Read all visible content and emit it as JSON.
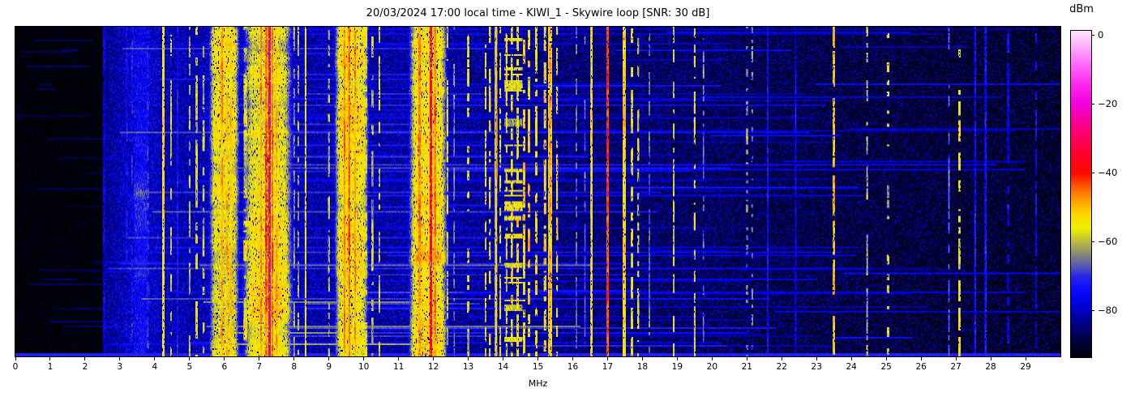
{
  "header": {
    "title": "20/03/2024 17:00 local time - KIWI_1 - Skywire loop [SNR: 30 dB]"
  },
  "chart_data": {
    "type": "heatmap",
    "title": "20/03/2024 17:00 local time - KIWI_1 - Skywire loop [SNR: 30 dB]",
    "xlabel": "MHz",
    "x_range_mhz": [
      0,
      30
    ],
    "x_ticks": [
      "0",
      "1",
      "2",
      "3",
      "4",
      "5",
      "6",
      "7",
      "8",
      "9",
      "10",
      "11",
      "12",
      "13",
      "14",
      "15",
      "16",
      "17",
      "18",
      "19",
      "20",
      "21",
      "22",
      "23",
      "24",
      "25",
      "26",
      "27",
      "28",
      "29"
    ],
    "y_axis": "time (no tick labels shown)",
    "grid": false,
    "colorbar": {
      "label": "dBm",
      "range_dbm": [
        1.4,
        -93.5
      ],
      "ticks": [
        {
          "label": "0",
          "value": 0
        },
        {
          "label": "−20",
          "value": -20
        },
        {
          "label": "−40",
          "value": -40
        },
        {
          "label": "−60",
          "value": -60
        },
        {
          "label": "−80",
          "value": -80
        }
      ],
      "gradient_stops": [
        [
          -94,
          "#000000"
        ],
        [
          -88,
          "#000048"
        ],
        [
          -83,
          "#000096"
        ],
        [
          -78,
          "#0000e1"
        ],
        [
          -74,
          "#0a0aff"
        ],
        [
          -70,
          "#2828e6"
        ],
        [
          -67,
          "#5a5ab4"
        ],
        [
          -64,
          "#828282"
        ],
        [
          -62,
          "#a0a05a"
        ],
        [
          -59,
          "#c8c832"
        ],
        [
          -56,
          "#f0f000"
        ],
        [
          -52,
          "#ffd800"
        ],
        [
          -48,
          "#ffa000"
        ],
        [
          -44,
          "#ff5a00"
        ],
        [
          -40,
          "#fc0a00"
        ],
        [
          -35,
          "#ff0028"
        ],
        [
          -30,
          "#ff005a"
        ],
        [
          -25,
          "#fa0096"
        ],
        [
          -20,
          "#f400dc"
        ],
        [
          -14,
          "#ff28f0"
        ],
        [
          -8,
          "#ff6efa"
        ],
        [
          -2,
          "#ffbefc"
        ],
        [
          2,
          "#ffe8ff"
        ]
      ]
    },
    "noise_floor_dbm": [
      [
        0,
        -92.5
      ],
      [
        2.5,
        -92.5
      ],
      [
        2.56,
        -84
      ],
      [
        3.1,
        -81
      ],
      [
        3.5,
        -78.5
      ],
      [
        3.9,
        -80
      ],
      [
        4.5,
        -81.5
      ],
      [
        6,
        -81
      ],
      [
        8,
        -82
      ],
      [
        11,
        -82.5
      ],
      [
        13,
        -83.5
      ],
      [
        16,
        -85.5
      ],
      [
        18,
        -86.5
      ],
      [
        21,
        -88
      ],
      [
        24,
        -89
      ],
      [
        27,
        -90
      ],
      [
        30,
        -90.5
      ]
    ],
    "signal_bands": [
      {
        "mhz": 2.55,
        "width_mhz": 0.05,
        "peak_dbm": -77,
        "mode": "solid"
      },
      {
        "mhz": 3.2,
        "width_mhz": 0.04,
        "peak_dbm": -74,
        "mode": "dotted"
      },
      {
        "mhz": 3.35,
        "width_mhz": 0.04,
        "peak_dbm": -73,
        "mode": "dotted"
      },
      {
        "mhz": 3.6,
        "width_mhz": 0.3,
        "peak_dbm": -75,
        "mode": "band"
      },
      {
        "mhz": 3.8,
        "width_mhz": 0.05,
        "peak_dbm": -71,
        "mode": "dotted"
      },
      {
        "mhz": 4.25,
        "width_mhz": 0.05,
        "peak_dbm": -54,
        "mode": "solid"
      },
      {
        "mhz": 4.47,
        "width_mhz": 0.04,
        "peak_dbm": -59,
        "mode": "dotted"
      },
      {
        "mhz": 4.65,
        "width_mhz": 0.04,
        "peak_dbm": -72,
        "mode": "solid"
      },
      {
        "mhz": 5.0,
        "width_mhz": 0.04,
        "peak_dbm": -61,
        "mode": "dotted"
      },
      {
        "mhz": 5.2,
        "width_mhz": 0.05,
        "peak_dbm": -57,
        "mode": "dotted"
      },
      {
        "mhz": 5.4,
        "width_mhz": 0.05,
        "peak_dbm": -58,
        "mode": "dotted"
      },
      {
        "mhz": 6.0,
        "width_mhz": 0.5,
        "peak_dbm": -57,
        "mode": "band"
      },
      {
        "mhz": 5.93,
        "width_mhz": 0.05,
        "peak_dbm": -48,
        "mode": "solid"
      },
      {
        "mhz": 6.07,
        "width_mhz": 0.05,
        "peak_dbm": -50,
        "mode": "solid"
      },
      {
        "mhz": 6.18,
        "width_mhz": 0.04,
        "peak_dbm": -52,
        "mode": "solid"
      },
      {
        "mhz": 6.6,
        "width_mhz": 0.08,
        "peak_dbm": -56,
        "mode": "dotted"
      },
      {
        "mhz": 7.25,
        "width_mhz": 0.8,
        "peak_dbm": -56,
        "mode": "band"
      },
      {
        "mhz": 7.05,
        "width_mhz": 0.05,
        "peak_dbm": -47,
        "mode": "solid"
      },
      {
        "mhz": 7.2,
        "width_mhz": 0.05,
        "peak_dbm": -44,
        "mode": "solid"
      },
      {
        "mhz": 7.3,
        "width_mhz": 0.035,
        "peak_dbm": -27,
        "mode": "solid"
      },
      {
        "mhz": 7.38,
        "width_mhz": 0.05,
        "peak_dbm": -44,
        "mode": "solid"
      },
      {
        "mhz": 7.5,
        "width_mhz": 0.05,
        "peak_dbm": -50,
        "mode": "solid"
      },
      {
        "mhz": 8.0,
        "width_mhz": 0.04,
        "peak_dbm": -62,
        "mode": "dotted"
      },
      {
        "mhz": 8.12,
        "width_mhz": 0.04,
        "peak_dbm": -60,
        "mode": "dotted"
      },
      {
        "mhz": 8.33,
        "width_mhz": 0.04,
        "peak_dbm": -55,
        "mode": "solid"
      },
      {
        "mhz": 9.0,
        "width_mhz": 0.04,
        "peak_dbm": -61,
        "mode": "dotted"
      },
      {
        "mhz": 9.65,
        "width_mhz": 0.55,
        "peak_dbm": -55,
        "mode": "band"
      },
      {
        "mhz": 9.45,
        "width_mhz": 0.05,
        "peak_dbm": -46,
        "mode": "solid"
      },
      {
        "mhz": 9.58,
        "width_mhz": 0.04,
        "peak_dbm": -44,
        "mode": "solid"
      },
      {
        "mhz": 9.75,
        "width_mhz": 0.05,
        "peak_dbm": -48,
        "mode": "solid"
      },
      {
        "mhz": 10.05,
        "width_mhz": 0.1,
        "peak_dbm": -57,
        "mode": "dotted"
      },
      {
        "mhz": 10.25,
        "width_mhz": 0.04,
        "peak_dbm": -60,
        "mode": "dotted"
      },
      {
        "mhz": 10.45,
        "width_mhz": 0.04,
        "peak_dbm": -58,
        "mode": "dotted"
      },
      {
        "mhz": 11.85,
        "width_mhz": 0.62,
        "peak_dbm": -54,
        "mode": "band"
      },
      {
        "mhz": 11.6,
        "width_mhz": 0.05,
        "peak_dbm": -46,
        "mode": "solid"
      },
      {
        "mhz": 11.93,
        "width_mhz": 0.04,
        "peak_dbm": -33,
        "mode": "solid"
      },
      {
        "mhz": 12.05,
        "width_mhz": 0.05,
        "peak_dbm": -45,
        "mode": "solid"
      },
      {
        "mhz": 12.4,
        "width_mhz": 0.04,
        "peak_dbm": -58,
        "mode": "dotted"
      },
      {
        "mhz": 12.6,
        "width_mhz": 0.03,
        "peak_dbm": -65,
        "mode": "dotted"
      },
      {
        "mhz": 13.0,
        "width_mhz": 0.04,
        "peak_dbm": -57,
        "mode": "dotted"
      },
      {
        "mhz": 13.5,
        "width_mhz": 0.04,
        "peak_dbm": -56,
        "mode": "dotted"
      },
      {
        "mhz": 13.62,
        "width_mhz": 0.04,
        "peak_dbm": -55,
        "mode": "dotted"
      },
      {
        "mhz": 13.8,
        "width_mhz": 0.05,
        "peak_dbm": -52,
        "mode": "solid"
      },
      {
        "mhz": 13.92,
        "width_mhz": 0.04,
        "peak_dbm": -56,
        "mode": "dotted"
      },
      {
        "mhz": 14.3,
        "width_mhz": 0.5,
        "peak_dbm": -57,
        "mode": "speckle"
      },
      {
        "mhz": 14.1,
        "width_mhz": 0.04,
        "peak_dbm": -56,
        "mode": "dotted"
      },
      {
        "mhz": 14.25,
        "width_mhz": 0.04,
        "peak_dbm": -54,
        "mode": "dotted"
      },
      {
        "mhz": 14.42,
        "width_mhz": 0.04,
        "peak_dbm": -54,
        "mode": "dotted"
      },
      {
        "mhz": 14.6,
        "width_mhz": 0.05,
        "peak_dbm": -53,
        "mode": "dotted"
      },
      {
        "mhz": 14.75,
        "width_mhz": 0.05,
        "peak_dbm": -52,
        "mode": "dotted"
      },
      {
        "mhz": 14.95,
        "width_mhz": 0.05,
        "peak_dbm": -54,
        "mode": "dotted"
      },
      {
        "mhz": 15.2,
        "width_mhz": 0.05,
        "peak_dbm": -52,
        "mode": "dotted"
      },
      {
        "mhz": 15.35,
        "width_mhz": 0.08,
        "peak_dbm": -50,
        "mode": "solid"
      },
      {
        "mhz": 15.55,
        "width_mhz": 0.04,
        "peak_dbm": -55,
        "mode": "dotted"
      },
      {
        "mhz": 16.1,
        "width_mhz": 0.03,
        "peak_dbm": -65,
        "mode": "dotted"
      },
      {
        "mhz": 16.35,
        "width_mhz": 0.03,
        "peak_dbm": -66,
        "mode": "dotted"
      },
      {
        "mhz": 16.54,
        "width_mhz": 0.04,
        "peak_dbm": -54,
        "mode": "solid"
      },
      {
        "mhz": 17.0,
        "width_mhz": 0.045,
        "peak_dbm": -42,
        "mode": "solid"
      },
      {
        "mhz": 17.48,
        "width_mhz": 0.08,
        "peak_dbm": -52,
        "mode": "solid"
      },
      {
        "mhz": 17.7,
        "width_mhz": 0.04,
        "peak_dbm": -56,
        "mode": "dotted"
      },
      {
        "mhz": 17.88,
        "width_mhz": 0.04,
        "peak_dbm": -58,
        "mode": "dotted"
      },
      {
        "mhz": 18.2,
        "width_mhz": 0.03,
        "peak_dbm": -66,
        "mode": "dotted"
      },
      {
        "mhz": 18.9,
        "width_mhz": 0.04,
        "peak_dbm": -58,
        "mode": "dotted"
      },
      {
        "mhz": 19.5,
        "width_mhz": 0.04,
        "peak_dbm": -57,
        "mode": "dotted"
      },
      {
        "mhz": 19.75,
        "width_mhz": 0.03,
        "peak_dbm": -64,
        "mode": "dotted"
      },
      {
        "mhz": 21.0,
        "width_mhz": 0.06,
        "peak_dbm": -64,
        "mode": "speckle"
      },
      {
        "mhz": 21.15,
        "width_mhz": 0.04,
        "peak_dbm": -66,
        "mode": "speckle"
      },
      {
        "mhz": 21.6,
        "width_mhz": 0.03,
        "peak_dbm": -74,
        "mode": "solid"
      },
      {
        "mhz": 22.4,
        "width_mhz": 0.03,
        "peak_dbm": -75,
        "mode": "solid"
      },
      {
        "mhz": 23.5,
        "width_mhz": 0.04,
        "peak_dbm": -49,
        "mode": "dotted"
      },
      {
        "mhz": 24.45,
        "width_mhz": 0.03,
        "peak_dbm": -57,
        "mode": "dotted"
      },
      {
        "mhz": 25.05,
        "width_mhz": 0.06,
        "peak_dbm": -58,
        "mode": "speckle"
      },
      {
        "mhz": 26.8,
        "width_mhz": 0.03,
        "peak_dbm": -64,
        "mode": "dotted"
      },
      {
        "mhz": 27.1,
        "width_mhz": 0.04,
        "peak_dbm": -55,
        "mode": "dotted"
      },
      {
        "mhz": 27.55,
        "width_mhz": 0.04,
        "peak_dbm": -72,
        "mode": "solid"
      },
      {
        "mhz": 27.85,
        "width_mhz": 0.04,
        "peak_dbm": -73,
        "mode": "solid"
      },
      {
        "mhz": 28.5,
        "width_mhz": 0.04,
        "peak_dbm": -76,
        "mode": "dotted"
      },
      {
        "mhz": 29.3,
        "width_mhz": 0.04,
        "peak_dbm": -75,
        "mode": "dotted"
      }
    ],
    "texture": {
      "seed": 20240320,
      "random_streak_count": 120,
      "bright_rows": [
        {
          "row": 147,
          "f0": 5.3,
          "f1": 16.5,
          "dbm": -66
        },
        {
          "row": 170,
          "f0": 5.4,
          "f1": 12.3,
          "dbm": -64
        },
        {
          "row": 185,
          "f0": 5.5,
          "f1": 16.2,
          "dbm": -65
        },
        {
          "row": 189,
          "f0": 6.3,
          "f1": 9.4,
          "dbm": -63
        },
        {
          "row": 196,
          "f0": 5.8,
          "f1": 12.2,
          "dbm": -62
        }
      ],
      "bottom_row_dbm": -71
    }
  }
}
